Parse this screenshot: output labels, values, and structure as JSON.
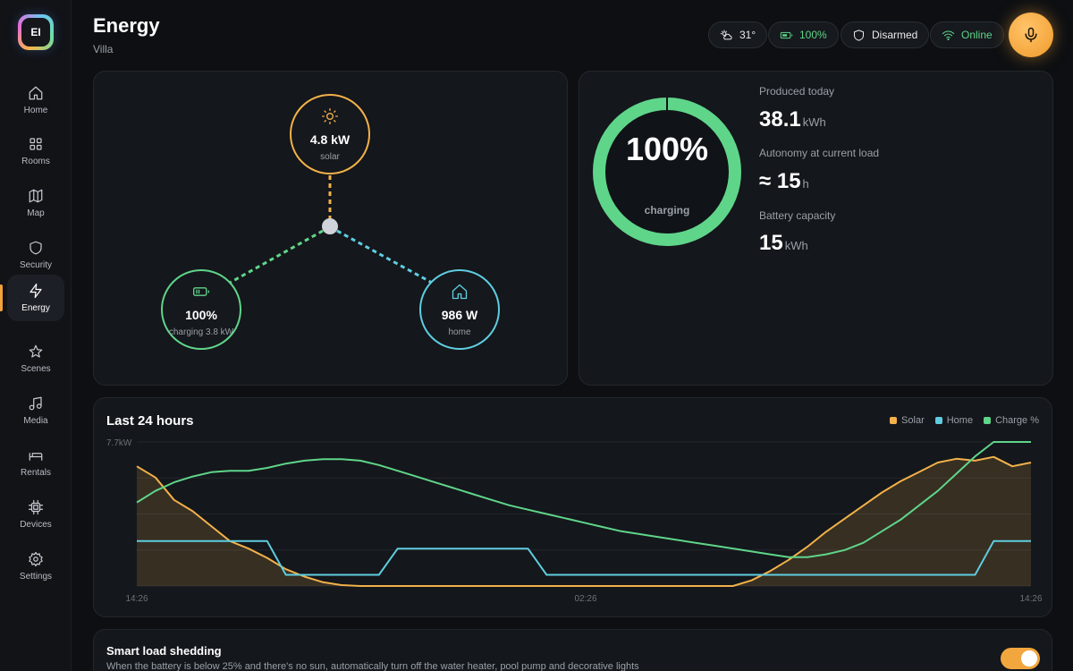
{
  "app": {
    "logo_text": "EI"
  },
  "sidebar": {
    "items": [
      {
        "label": "Home",
        "icon": "home-icon",
        "active": false
      },
      {
        "label": "Rooms",
        "icon": "grid-icon",
        "active": false
      },
      {
        "label": "Map",
        "icon": "map-icon",
        "active": false
      },
      {
        "label": "Security",
        "icon": "shield-icon",
        "active": false
      },
      {
        "label": "Energy",
        "icon": "bolt-icon",
        "active": true
      },
      {
        "label": "Scenes",
        "icon": "star-icon",
        "active": false
      },
      {
        "label": "Media",
        "icon": "music-icon",
        "active": false
      },
      {
        "label": "Rentals",
        "icon": "bed-icon",
        "active": false
      },
      {
        "label": "Devices",
        "icon": "chip-icon",
        "active": false
      },
      {
        "label": "Settings",
        "icon": "gear-icon",
        "active": false
      }
    ]
  },
  "header": {
    "title": "Energy",
    "subtitle": "Villa",
    "weather": "31°",
    "battery": "100%",
    "security": "Disarmed",
    "network": "Online"
  },
  "flow": {
    "solar": {
      "value": "4.8 kW",
      "label": "solar"
    },
    "battery": {
      "value": "100%",
      "label": "charging 3.8 kW"
    },
    "home": {
      "value": "986 W",
      "label": "home"
    }
  },
  "battery_ring": {
    "percent_text": "100%",
    "level": 100,
    "label": "charging"
  },
  "stats": {
    "produced_label": "Produced today",
    "produced_value": "38.1",
    "produced_unit": "kWh",
    "autonomy_label": "Autonomy at current load",
    "autonomy_value": "≈ 15",
    "autonomy_unit": "h",
    "capacity_label": "Battery capacity",
    "capacity_value": "15",
    "capacity_unit": "kWh"
  },
  "chart": {
    "title": "Last 24 hours",
    "y_max_label": "7.7kW",
    "x_labels": [
      "14:26",
      "02:26",
      "14:26"
    ],
    "legend": [
      {
        "name": "Solar",
        "color": "#f2b14a"
      },
      {
        "name": "Home",
        "color": "#5fcde0"
      },
      {
        "name": "Charge %",
        "color": "#5fd58a"
      }
    ]
  },
  "chart_data": {
    "type": "line",
    "ylim": [
      0,
      7.7
    ],
    "x_ticks": [
      "14:26",
      "02:26",
      "14:26"
    ],
    "series": [
      {
        "name": "Solar",
        "x": [
          0,
          0.5,
          1,
          1.5,
          2,
          2.5,
          3,
          3.5,
          4,
          4.5,
          5,
          5.5,
          6,
          6.5,
          7,
          7.5,
          8,
          8.5,
          9,
          9.5,
          10,
          10.5,
          11,
          11.5,
          12,
          12.5,
          13,
          13.5,
          14,
          14.5,
          15,
          15.5,
          16,
          16.5,
          17,
          17.5,
          18,
          18.5,
          19,
          19.5,
          20,
          20.5,
          21,
          21.5,
          22,
          22.5,
          23,
          23.5,
          24
        ],
        "values": [
          6.4,
          5.8,
          4.6,
          4.0,
          3.2,
          2.4,
          2.0,
          1.5,
          0.9,
          0.5,
          0.2,
          0.05,
          0,
          0,
          0,
          0,
          0,
          0,
          0,
          0,
          0,
          0,
          0,
          0,
          0,
          0,
          0,
          0,
          0,
          0,
          0,
          0,
          0,
          0.3,
          0.8,
          1.4,
          2.1,
          2.9,
          3.6,
          4.3,
          5.0,
          5.6,
          6.1,
          6.6,
          6.8,
          6.7,
          6.9,
          6.4,
          6.6
        ]
      },
      {
        "name": "Home",
        "x": [
          0,
          0.5,
          1,
          1.5,
          2,
          2.5,
          3,
          3.5,
          4,
          4.5,
          5,
          5.5,
          6,
          6.5,
          7,
          7.5,
          8,
          8.5,
          9,
          9.5,
          10,
          10.5,
          11,
          11.5,
          12,
          12.5,
          13,
          13.5,
          14,
          14.5,
          15,
          15.5,
          16,
          16.5,
          17,
          17.5,
          18,
          18.5,
          19,
          19.5,
          20,
          20.5,
          21,
          21.5,
          22,
          22.5,
          23,
          23.5,
          24
        ],
        "values": [
          2.4,
          2.4,
          2.4,
          2.4,
          2.4,
          2.4,
          2.4,
          2.4,
          0.6,
          0.6,
          0.6,
          0.6,
          0.6,
          0.6,
          2.0,
          2.0,
          2.0,
          2.0,
          2.0,
          2.0,
          2.0,
          2.0,
          0.6,
          0.6,
          0.6,
          0.6,
          0.6,
          0.6,
          0.6,
          0.6,
          0.6,
          0.6,
          0.6,
          0.6,
          0.6,
          0.6,
          0.6,
          0.6,
          0.6,
          0.6,
          0.6,
          0.6,
          0.6,
          0.6,
          0.6,
          0.6,
          2.4,
          2.4,
          2.4
        ]
      },
      {
        "name": "Charge %",
        "x": [
          0,
          0.5,
          1,
          1.5,
          2,
          2.5,
          3,
          3.5,
          4,
          4.5,
          5,
          5.5,
          6,
          6.5,
          7,
          7.5,
          8,
          8.5,
          9,
          9.5,
          10,
          10.5,
          11,
          11.5,
          12,
          12.5,
          13,
          13.5,
          14,
          14.5,
          15,
          15.5,
          16,
          16.5,
          17,
          17.5,
          18,
          18.5,
          19,
          19.5,
          20,
          20.5,
          21,
          21.5,
          22,
          22.5,
          23,
          23.5,
          24
        ],
        "values": [
          58,
          66,
          72,
          76,
          79,
          80,
          80,
          82,
          85,
          87,
          88,
          88,
          87,
          84,
          80,
          76,
          72,
          68,
          64,
          60,
          56,
          53,
          50,
          47,
          44,
          41,
          38,
          36,
          34,
          32,
          30,
          28,
          26,
          24,
          22,
          20,
          20,
          22,
          25,
          30,
          38,
          46,
          56,
          66,
          78,
          90,
          100,
          100,
          100
        ]
      }
    ]
  },
  "load_shedding": {
    "title": "Smart load shedding",
    "description": "When the battery is below 25% and there's no sun, automatically turn off the water heater, pool pump and decorative lights",
    "enabled": true
  }
}
